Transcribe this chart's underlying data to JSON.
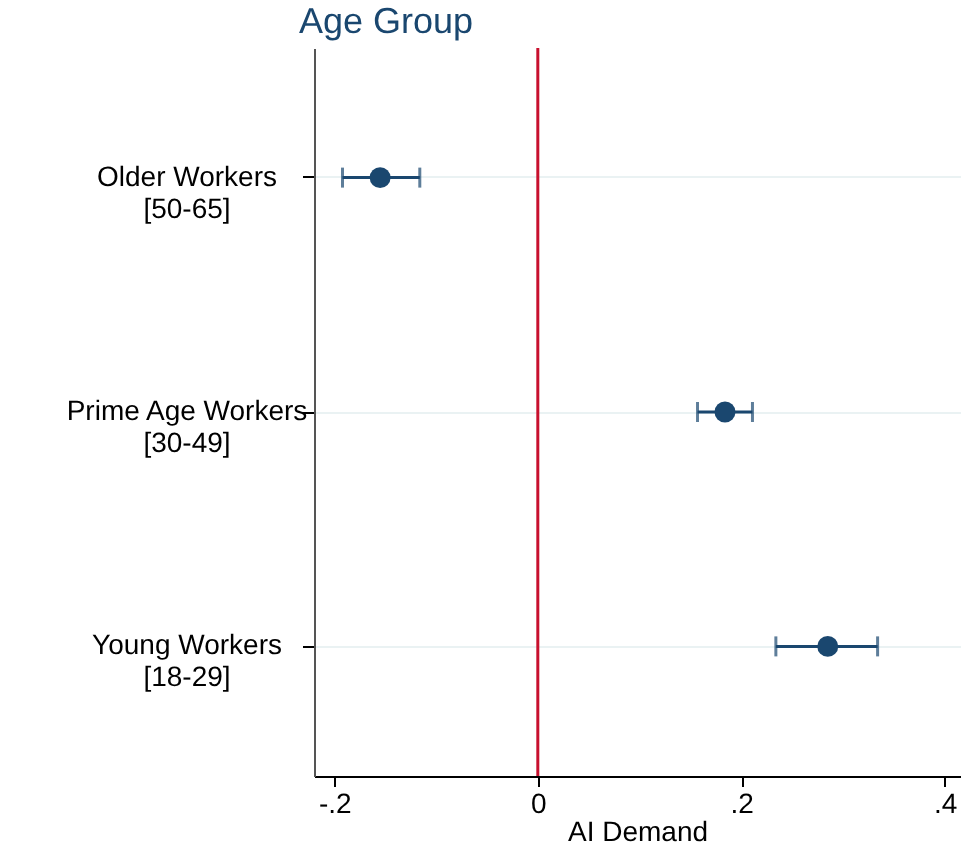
{
  "chart_data": {
    "type": "scatter",
    "ylabel": "Age Group",
    "xlabel": "AI Demand",
    "categories": [
      "Older Workers\n[50-65]",
      "Prime Age Workers\n[30-49]",
      "Young Workers\n[18-29]"
    ],
    "values": [
      -0.155,
      0.184,
      0.285
    ],
    "errors": [
      [
        -0.192,
        -0.116
      ],
      [
        0.157,
        0.211
      ],
      [
        0.234,
        0.334
      ]
    ],
    "color": "#1a476f",
    "xlim": [
      -0.22,
      0.415
    ],
    "xticks": [
      {
        "value": -0.2,
        "label": "-.2"
      },
      0,
      {
        "value": 0.2,
        "label": ".2"
      },
      {
        "value": 0.4,
        "label": ".4"
      }
    ],
    "ref_lines": [
      {
        "axis": "x",
        "value": 0,
        "color": "#c8102e"
      }
    ],
    "orientation": "horizontal",
    "grid": "y",
    "marker": "circle"
  }
}
